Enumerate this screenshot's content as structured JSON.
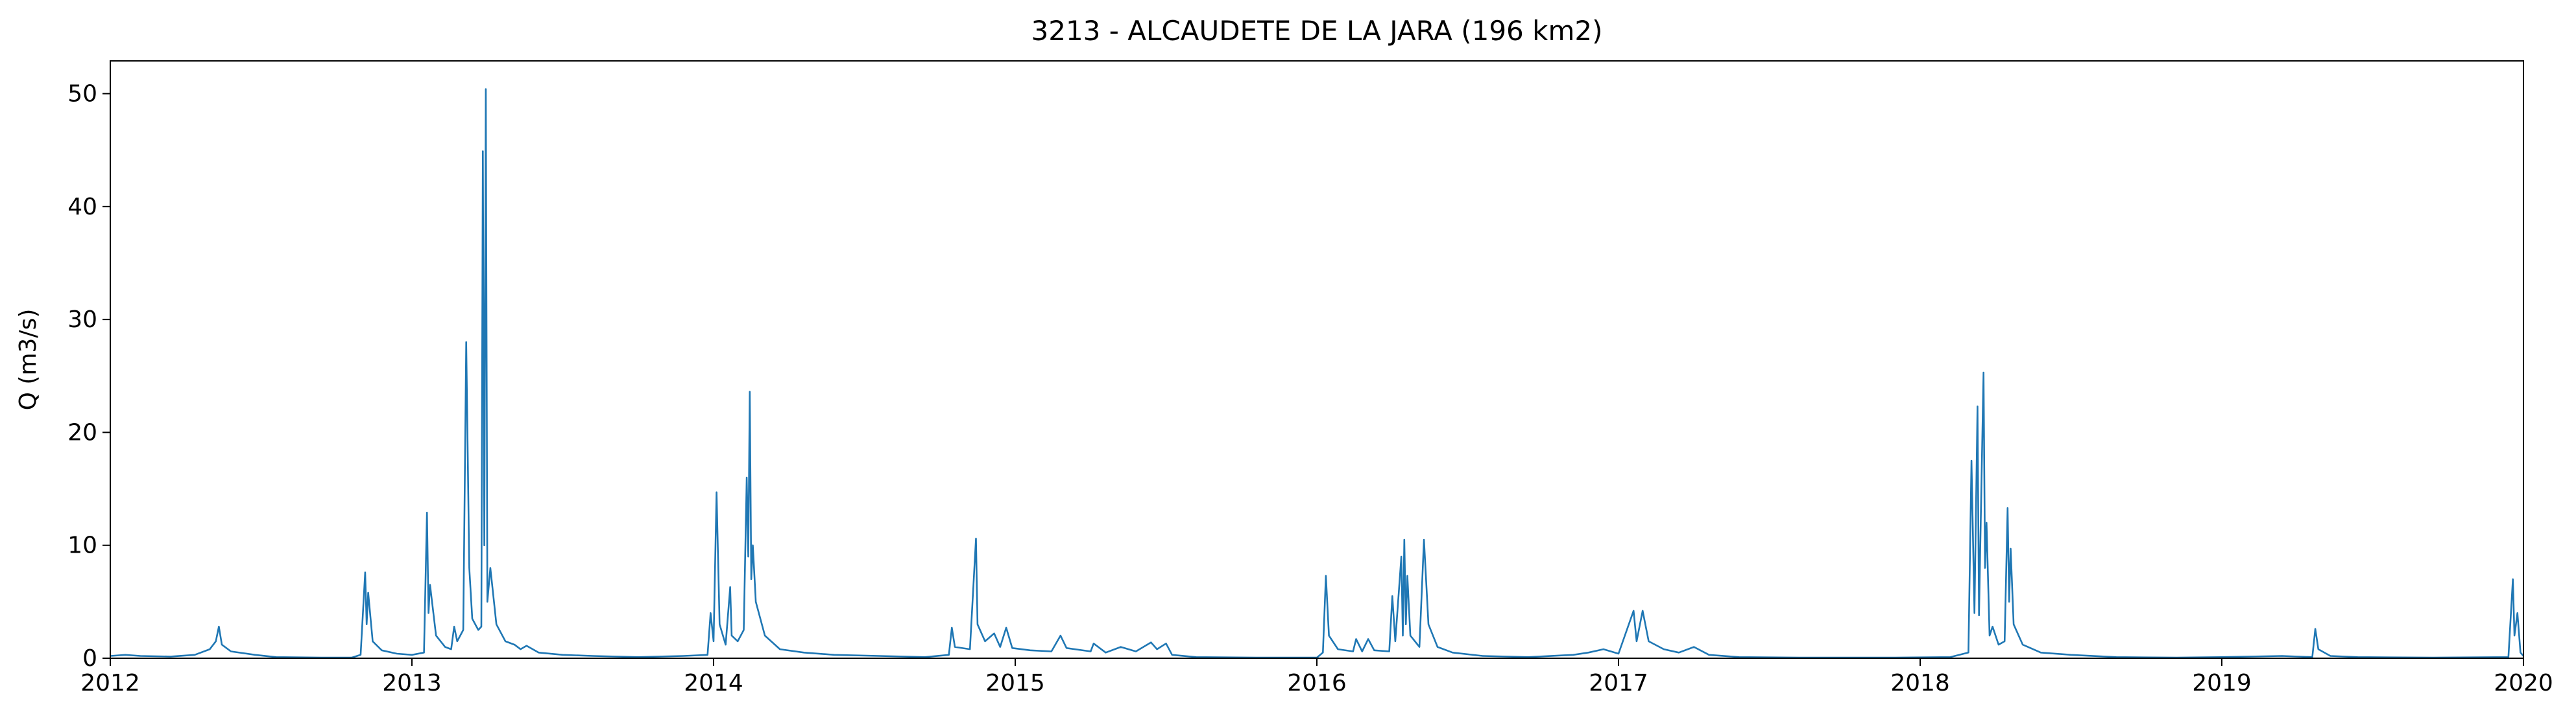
{
  "chart_data": {
    "type": "line",
    "title": "3213 - ALCAUDETE DE LA JARA (196 km2)",
    "y_label": "Q (m3/s)",
    "x": [
      2012.0,
      2012.05,
      2012.1,
      2012.2,
      2012.28,
      2012.33,
      2012.35,
      2012.36,
      2012.37,
      2012.4,
      2012.48,
      2012.55,
      2012.7,
      2012.8,
      2012.83,
      2012.845,
      2012.85,
      2012.855,
      2012.87,
      2012.9,
      2012.95,
      2013.0,
      2013.04,
      2013.05,
      2013.055,
      2013.06,
      2013.08,
      2013.11,
      2013.13,
      2013.14,
      2013.15,
      2013.17,
      2013.18,
      2013.19,
      2013.2,
      2013.22,
      2013.23,
      2013.235,
      2013.24,
      2013.245,
      2013.25,
      2013.26,
      2013.28,
      2013.31,
      2013.34,
      2013.36,
      2013.38,
      2013.42,
      2013.5,
      2013.6,
      2013.75,
      2013.9,
      2013.98,
      2013.99,
      2014.0,
      2014.01,
      2014.02,
      2014.04,
      2014.055,
      2014.06,
      2014.08,
      2014.1,
      2014.11,
      2014.115,
      2014.12,
      2014.125,
      2014.13,
      2014.14,
      2014.17,
      2014.22,
      2014.3,
      2014.4,
      2014.55,
      2014.7,
      2014.78,
      2014.79,
      2014.8,
      2014.85,
      2014.87,
      2014.875,
      2014.9,
      2014.93,
      2014.95,
      2014.97,
      2014.99,
      2015.05,
      2015.12,
      2015.15,
      2015.17,
      2015.25,
      2015.26,
      2015.3,
      2015.35,
      2015.4,
      2015.45,
      2015.47,
      2015.5,
      2015.52,
      2015.6,
      2015.8,
      2016.0,
      2016.02,
      2016.03,
      2016.04,
      2016.07,
      2016.12,
      2016.13,
      2016.15,
      2016.17,
      2016.19,
      2016.24,
      2016.25,
      2016.26,
      2016.28,
      2016.285,
      2016.29,
      2016.295,
      2016.3,
      2016.31,
      2016.34,
      2016.355,
      2016.37,
      2016.4,
      2016.45,
      2016.55,
      2016.7,
      2016.85,
      2016.9,
      2016.95,
      2017.0,
      2017.05,
      2017.06,
      2017.08,
      2017.1,
      2017.15,
      2017.2,
      2017.25,
      2017.3,
      2017.4,
      2017.6,
      2017.9,
      2018.1,
      2018.16,
      2018.17,
      2018.18,
      2018.19,
      2018.195,
      2018.21,
      2018.215,
      2018.22,
      2018.23,
      2018.24,
      2018.26,
      2018.28,
      2018.29,
      2018.295,
      2018.3,
      2018.31,
      2018.34,
      2018.4,
      2018.5,
      2018.65,
      2018.85,
      2019.0,
      2019.2,
      2019.3,
      2019.31,
      2019.32,
      2019.36,
      2019.45,
      2019.7,
      2019.95,
      2019.965,
      2019.97,
      2019.98,
      2019.99,
      2020.0
    ],
    "series": [
      {
        "color": "#1f77b4",
        "values": [
          0.2,
          0.3,
          0.2,
          0.15,
          0.3,
          0.8,
          1.5,
          2.8,
          1.2,
          0.6,
          0.3,
          0.1,
          0.05,
          0.05,
          0.3,
          7.6,
          3,
          5.8,
          1.5,
          0.7,
          0.4,
          0.3,
          0.5,
          12.9,
          4,
          6.5,
          2,
          1,
          0.8,
          2.8,
          1.5,
          2.5,
          28,
          8,
          3.5,
          2.5,
          2.8,
          44.9,
          10,
          50.4,
          5,
          8,
          3,
          1.5,
          1.2,
          0.8,
          1.1,
          0.5,
          0.3,
          0.2,
          0.1,
          0.2,
          0.3,
          4,
          1.5,
          14.7,
          3,
          1.2,
          6.3,
          2,
          1.5,
          2.5,
          16,
          9,
          23.6,
          7,
          10,
          5,
          2,
          0.8,
          0.5,
          0.3,
          0.2,
          0.1,
          0.3,
          2.7,
          1,
          0.8,
          10.6,
          3,
          1.5,
          2.2,
          1,
          2.7,
          0.9,
          0.7,
          0.6,
          2,
          0.9,
          0.6,
          1.3,
          0.5,
          1,
          0.6,
          1.4,
          0.8,
          1.3,
          0.3,
          0.1,
          0.05,
          0.05,
          0.5,
          7.3,
          2,
          0.8,
          0.6,
          1.7,
          0.6,
          1.7,
          0.7,
          0.6,
          5.5,
          1.5,
          9,
          2,
          10.5,
          3,
          7.3,
          2,
          1,
          10.5,
          3,
          1,
          0.5,
          0.2,
          0.1,
          0.3,
          0.5,
          0.8,
          0.4,
          4.2,
          1.5,
          4.2,
          1.5,
          0.8,
          0.5,
          1,
          0.3,
          0.1,
          0.05,
          0.05,
          0.1,
          0.5,
          17.5,
          4,
          22.3,
          3.8,
          25.3,
          8,
          12,
          2,
          2.8,
          1.2,
          1.5,
          13.3,
          5,
          9.7,
          3,
          1.2,
          0.5,
          0.3,
          0.1,
          0.05,
          0.1,
          0.2,
          0.1,
          2.6,
          0.8,
          0.2,
          0.1,
          0.05,
          0.1,
          7,
          2,
          4,
          0.5,
          0.2
        ]
      }
    ],
    "xlim": [
      2012,
      2020
    ],
    "xticks": [
      2012,
      2013,
      2014,
      2015,
      2016,
      2017,
      2018,
      2019,
      2020
    ],
    "ylim": [
      0,
      52.9
    ],
    "yticks": [
      0,
      10,
      20,
      30,
      40,
      50
    ]
  }
}
